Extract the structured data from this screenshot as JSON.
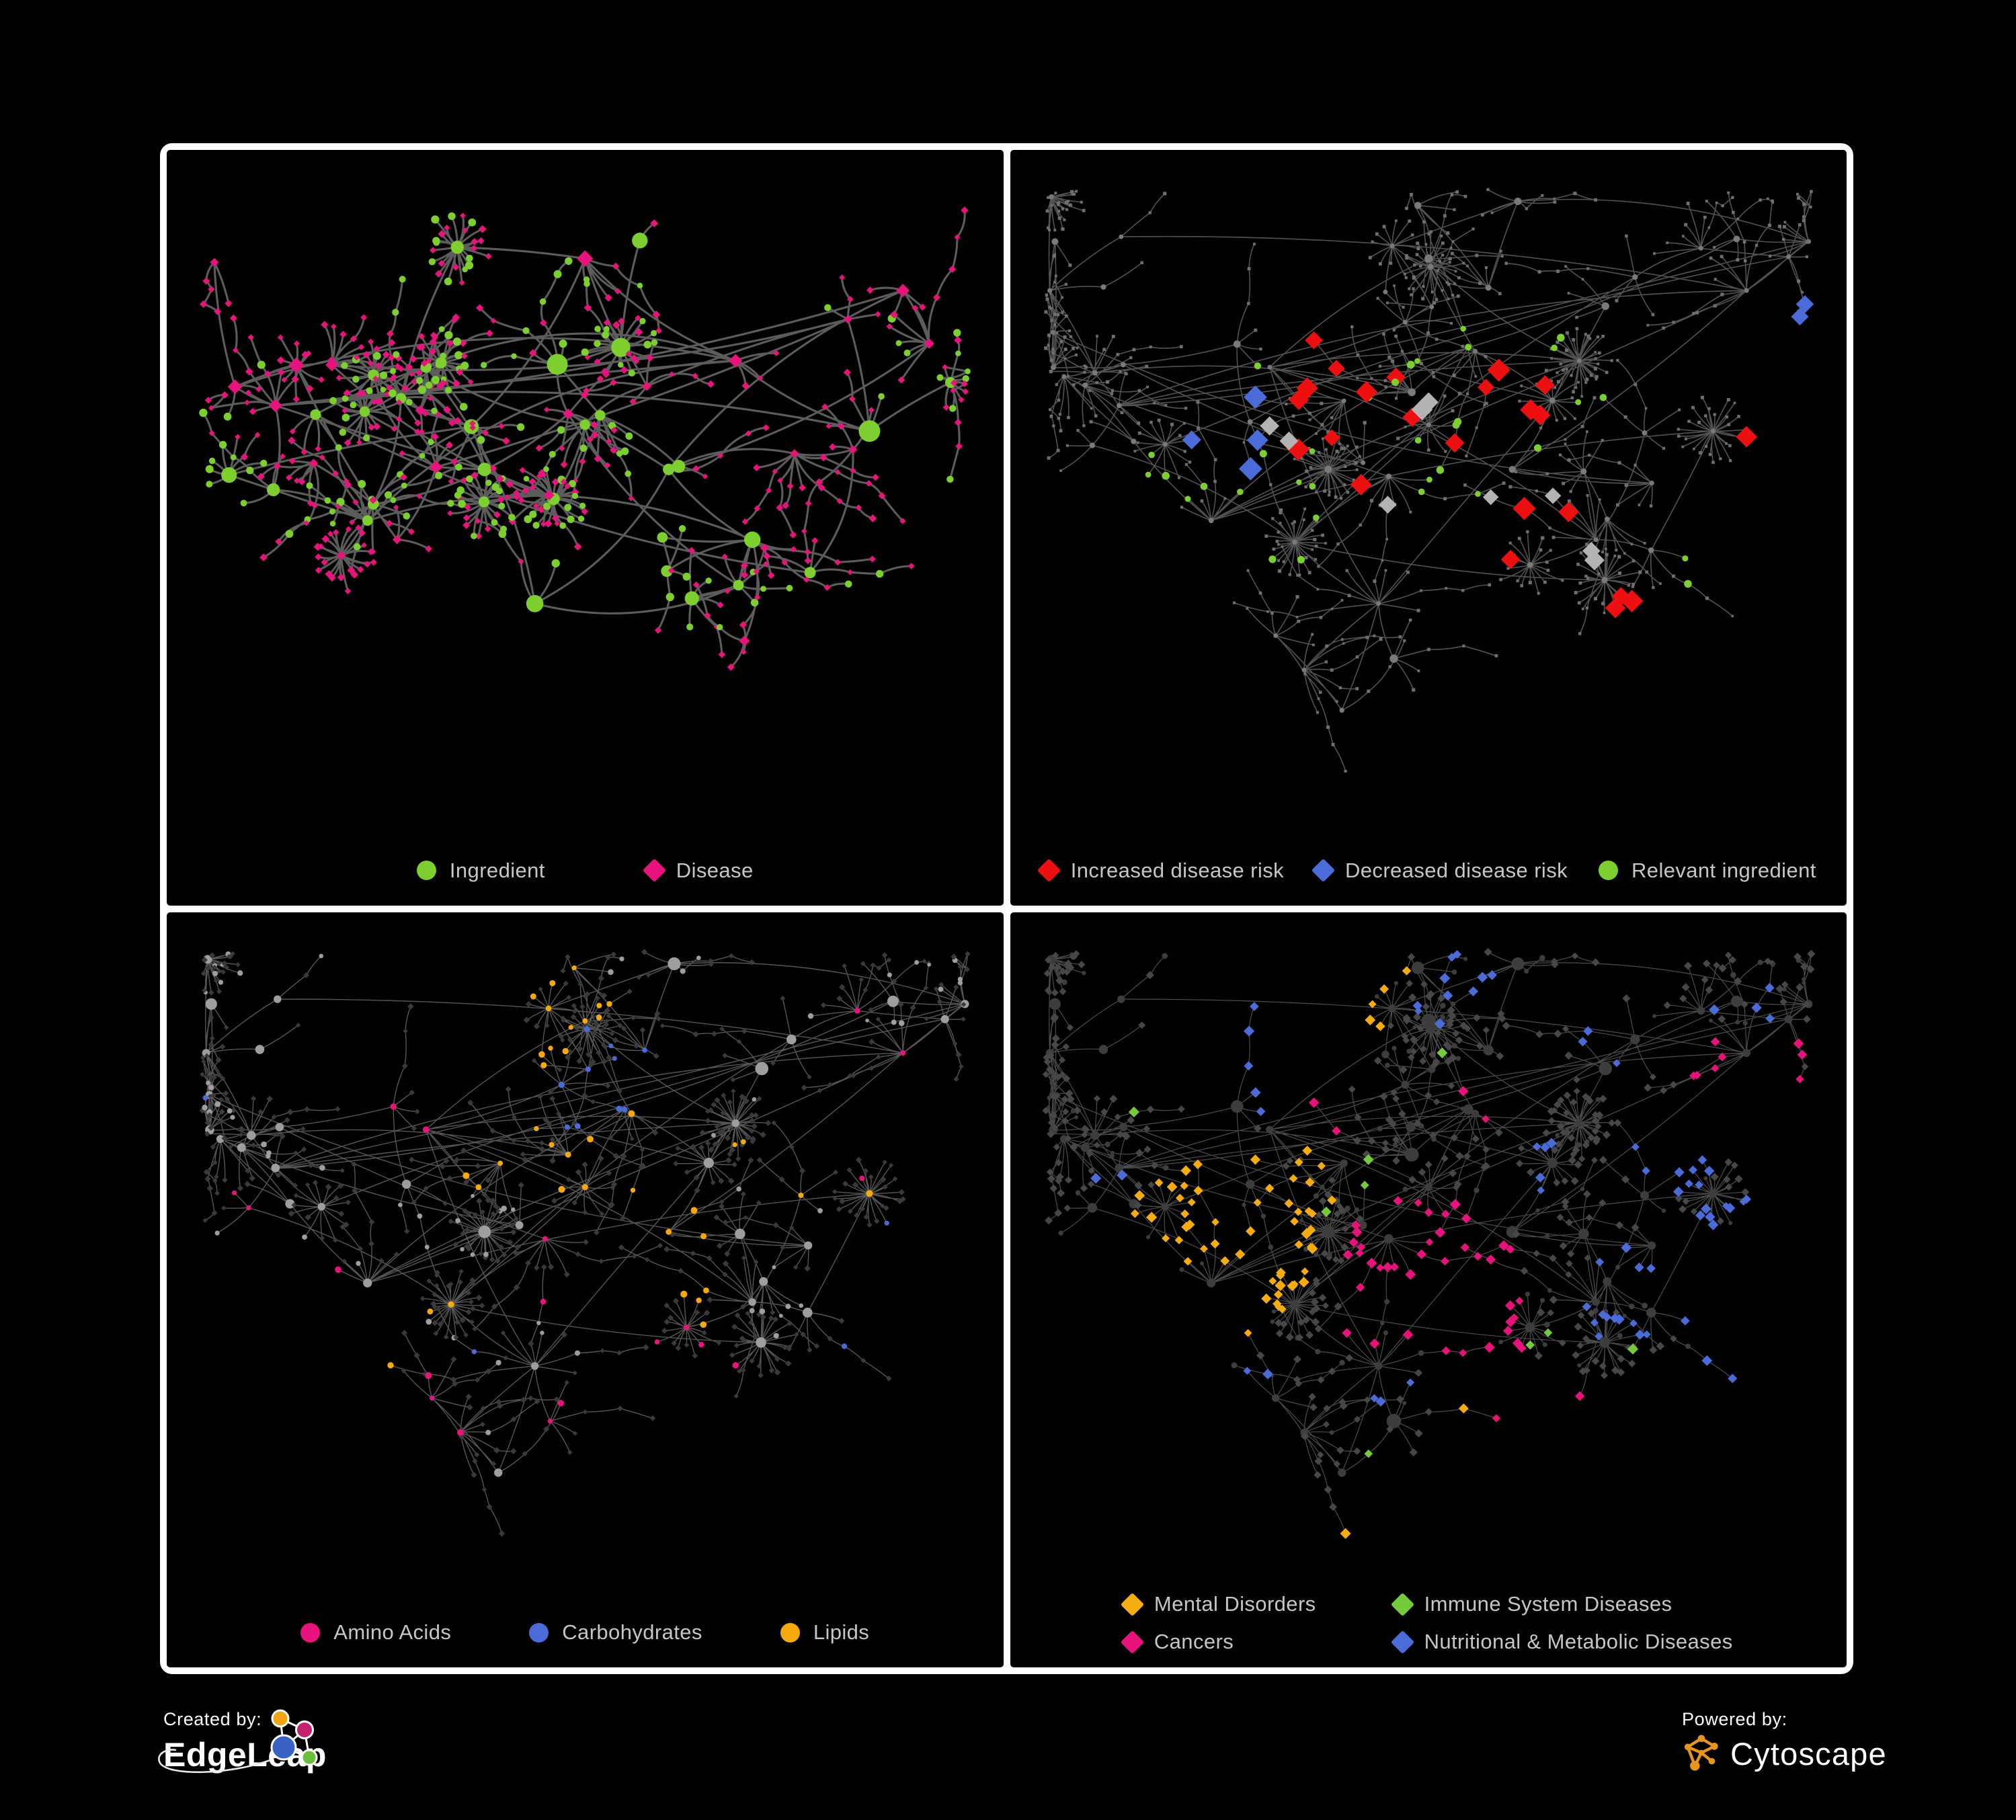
{
  "branding": {
    "created_by_label": "Created by:",
    "created_by_name": "EdgeLeap",
    "powered_by_label": "Powered by:",
    "powered_by_name": "Cytoscape",
    "edgeleap_logo_colors": {
      "orange": "#F2A413",
      "magenta": "#C4216E",
      "blue": "#3A62C4",
      "green": "#6CBE3F"
    },
    "cytoscape_logo_color": "#E8951F"
  },
  "legend_text_color": "#C6C6C6",
  "networks": {
    "bipartite": {
      "seed": 23,
      "hubs": 54,
      "hub_ing_p": 0.55,
      "leaf_ing_hub": 0.45,
      "leaf_ing_other": 0.12,
      "leaf_max": 8,
      "burst_p": 0.18,
      "burst_min": 10,
      "burst_max": 26,
      "chain_p": 0.3
    },
    "base": {
      "seed": 77,
      "hubs": 62,
      "hub_ing_p": 1.0,
      "leaf_ing_hub": 0.15,
      "leaf_ing_other": 0.15,
      "leaf_max": 9,
      "burst_p": 0.2,
      "burst_min": 12,
      "burst_max": 44,
      "chain_p": 0.34
    }
  },
  "panels": [
    {
      "name": "ingredient-disease-network",
      "network": "bipartite",
      "paint_seed": 5,
      "paint": {
        "mode": "two",
        "ing_color": "#7DCE2F",
        "dis_color": "#E8137C"
      },
      "edge": {
        "color": "#666666",
        "width": 3.1,
        "opacity": 0.9,
        "curve": 0.8
      },
      "legend": [
        {
          "label": "Ingredient",
          "color": "#7DCE2F",
          "shape": "circle"
        },
        {
          "label": "Disease",
          "color": "#E8137C",
          "shape": "diamond"
        }
      ]
    },
    {
      "name": "disease-risk-network",
      "network": "base",
      "paint_seed": 6,
      "paint": {
        "mode": "dim",
        "base_color": "#6F6F6F",
        "hub_color": "#7A7A7A"
      },
      "edge": {
        "color": "#606060",
        "width": 1.6,
        "opacity": 0.85,
        "curve": 0.45
      },
      "highlights": [
        {
          "color": "#EE1010",
          "shape": "diamond",
          "size": 15,
          "target": "dis",
          "spots": [
            [
              0.4,
              0.4,
              0.16,
              12
            ],
            [
              0.55,
              0.38,
              0.1,
              7
            ],
            [
              0.3,
              0.4,
              0.07,
              3
            ],
            [
              0.62,
              0.6,
              0.08,
              3
            ],
            [
              0.35,
              0.28,
              0.04,
              1
            ],
            [
              0.47,
              0.5,
              0.06,
              3
            ],
            [
              0.76,
              0.75,
              0.05,
              3
            ],
            [
              0.85,
              0.48,
              0.04,
              1
            ]
          ]
        },
        {
          "color": "#4B6CD8",
          "shape": "diamond",
          "size": 15,
          "target": "dis",
          "spots": [
            [
              0.26,
              0.42,
              0.07,
              5
            ],
            [
              0.9,
              0.3,
              0.04,
              2
            ]
          ]
        },
        {
          "color": "#B3B3B3",
          "shape": "diamond",
          "size": 14,
          "target": "dis",
          "spots": [
            [
              0.33,
              0.42,
              0.05,
              2
            ],
            [
              0.52,
              0.44,
              0.04,
              2
            ],
            [
              0.6,
              0.52,
              0.06,
              2
            ],
            [
              0.47,
              0.56,
              0.03,
              1
            ],
            [
              0.72,
              0.6,
              0.04,
              2
            ]
          ]
        },
        {
          "color": "#7DCE2F",
          "shape": "circle",
          "size": 8,
          "target": "any",
          "spots": [
            [
              0.42,
              0.44,
              0.13,
              10
            ],
            [
              0.25,
              0.43,
              0.1,
              6
            ],
            [
              0.55,
              0.5,
              0.09,
              5
            ],
            [
              0.15,
              0.5,
              0.04,
              2
            ],
            [
              0.68,
              0.38,
              0.05,
              2
            ],
            [
              0.85,
              0.6,
              0.04,
              2
            ],
            [
              0.3,
              0.66,
              0.05,
              2
            ],
            [
              0.5,
              0.3,
              0.05,
              3
            ],
            [
              0.62,
              0.3,
              0.04,
              2
            ]
          ]
        }
      ],
      "legend": [
        {
          "label": "Increased disease risk",
          "color": "#EE1010",
          "shape": "diamond"
        },
        {
          "label": "Decreased disease risk",
          "color": "#4B6CD8",
          "shape": "diamond"
        },
        {
          "label": "Relevant ingredient",
          "color": "#7DCE2F",
          "shape": "circle"
        }
      ]
    },
    {
      "name": "nutrient-class-network",
      "network": "base",
      "paint_seed": 7,
      "paint": {
        "mode": "classed",
        "ing_color": "#9E9E9E",
        "dis_color": "#3A3A3A",
        "dis_size": 3.6
      },
      "edge": {
        "color": "#8F8F8F",
        "width": 1.4,
        "opacity": 0.6,
        "curve": 0.4
      },
      "highlights": [
        {
          "color": "#F5A90D",
          "shape": "circle",
          "size": 7,
          "target": "ing",
          "spots": [
            [
              0.5,
              0.27,
              0.09,
              26
            ],
            [
              0.42,
              0.34,
              0.07,
              12
            ],
            [
              0.56,
              0.45,
              0.05,
              7
            ],
            [
              0.3,
              0.2,
              0.05,
              4
            ],
            [
              0.64,
              0.6,
              0.05,
              5
            ],
            [
              0.34,
              0.6,
              0.03,
              2
            ],
            [
              0.74,
              0.38,
              0.04,
              3
            ],
            [
              0.46,
              0.1,
              0.04,
              3
            ],
            [
              0.2,
              0.78,
              0.03,
              2
            ],
            [
              0.88,
              0.55,
              0.03,
              2
            ],
            [
              0.58,
              0.7,
              0.03,
              2
            ]
          ]
        },
        {
          "color": "#4B6CD8",
          "shape": "circle",
          "size": 6.5,
          "target": "ing",
          "spots": [
            [
              0.53,
              0.24,
              0.05,
              7
            ],
            [
              0.47,
              0.3,
              0.04,
              3
            ],
            [
              0.06,
              0.3,
              0.02,
              1
            ],
            [
              0.88,
              0.62,
              0.03,
              2
            ],
            [
              0.38,
              0.66,
              0.02,
              1
            ]
          ]
        },
        {
          "color": "#E8137C",
          "shape": "circle",
          "size": 7,
          "target": "ing",
          "spots": [
            [
              0.1,
              0.44,
              0.04,
              2
            ],
            [
              0.34,
              0.77,
              0.05,
              3
            ],
            [
              0.6,
              0.74,
              0.05,
              4
            ],
            [
              0.92,
              0.32,
              0.04,
              2
            ],
            [
              0.25,
              0.3,
              0.03,
              2
            ],
            [
              0.49,
              0.88,
              0.03,
              2
            ],
            [
              0.84,
              0.14,
              0.02,
              1
            ],
            [
              0.46,
              0.56,
              0.03,
              2
            ],
            [
              0.16,
              0.6,
              0.03,
              1
            ],
            [
              0.55,
              0.96,
              0.02,
              1
            ]
          ]
        }
      ],
      "legend": [
        {
          "label": "Amino Acids",
          "color": "#E8137C",
          "shape": "circle"
        },
        {
          "label": "Carbohydrates",
          "color": "#4B6CD8",
          "shape": "circle"
        },
        {
          "label": "Lipids",
          "color": "#F5A90D",
          "shape": "circle"
        }
      ]
    },
    {
      "name": "disease-class-network",
      "network": "base",
      "paint_seed": 8,
      "paint": {
        "mode": "classed",
        "ing_color": "#3D3D3D",
        "dis_color": "#474747",
        "dis_size": 5
      },
      "edge": {
        "color": "#8A8A8A",
        "width": 1.2,
        "opacity": 0.55,
        "curve": 0.4
      },
      "highlights": [
        {
          "color": "#F5AC10",
          "shape": "diamond",
          "size": 7,
          "target": "dis",
          "spots": [
            [
              0.26,
              0.52,
              0.1,
              48
            ],
            [
              0.33,
              0.44,
              0.06,
              12
            ],
            [
              0.21,
              0.61,
              0.05,
              8
            ],
            [
              0.38,
              0.1,
              0.05,
              5
            ],
            [
              0.29,
              0.08,
              0.03,
              2
            ],
            [
              0.55,
              0.78,
              0.03,
              2
            ],
            [
              0.44,
              0.94,
              0.02,
              1
            ],
            [
              0.8,
              0.42,
              0.02,
              1
            ],
            [
              0.15,
              0.45,
              0.04,
              4
            ]
          ]
        },
        {
          "color": "#E8127C",
          "shape": "diamond",
          "size": 7,
          "target": "dis",
          "spots": [
            [
              0.5,
              0.56,
              0.08,
              30
            ],
            [
              0.57,
              0.62,
              0.05,
              10
            ],
            [
              0.45,
              0.63,
              0.04,
              6
            ],
            [
              0.88,
              0.28,
              0.05,
              6
            ],
            [
              0.35,
              0.3,
              0.04,
              3
            ],
            [
              0.55,
              0.3,
              0.03,
              2
            ],
            [
              0.67,
              0.87,
              0.03,
              2
            ],
            [
              0.6,
              0.96,
              0.02,
              1
            ],
            [
              0.93,
              0.22,
              0.03,
              2
            ]
          ]
        },
        {
          "color": "#4B6CD8",
          "shape": "diamond",
          "size": 7,
          "target": "dis",
          "spots": [
            [
              0.73,
              0.6,
              0.06,
              14
            ],
            [
              0.8,
              0.37,
              0.05,
              9
            ],
            [
              0.85,
              0.49,
              0.04,
              6
            ],
            [
              0.55,
              0.08,
              0.05,
              7
            ],
            [
              0.3,
              0.15,
              0.05,
              5
            ],
            [
              0.88,
              0.14,
              0.04,
              4
            ],
            [
              0.95,
              0.55,
              0.03,
              2
            ],
            [
              0.65,
              0.34,
              0.03,
              3
            ],
            [
              0.45,
              0.74,
              0.03,
              3
            ],
            [
              0.25,
              0.74,
              0.02,
              2
            ],
            [
              0.92,
              0.74,
              0.03,
              3
            ],
            [
              0.12,
              0.4,
              0.02,
              2
            ],
            [
              0.7,
              0.2,
              0.03,
              3
            ],
            [
              0.5,
              0.18,
              0.03,
              3
            ],
            [
              0.62,
              0.45,
              0.03,
              2
            ]
          ]
        },
        {
          "color": "#76C83C",
          "shape": "diamond",
          "size": 7,
          "target": "dis",
          "spots": [
            [
              0.44,
              0.42,
              0.03,
              2
            ],
            [
              0.37,
              0.47,
              0.02,
              1
            ],
            [
              0.63,
              0.66,
              0.02,
              2
            ],
            [
              0.52,
              0.2,
              0.02,
              1
            ],
            [
              0.15,
              0.3,
              0.02,
              1
            ],
            [
              0.75,
              0.7,
              0.02,
              1
            ],
            [
              0.42,
              0.88,
              0.02,
              1
            ]
          ]
        }
      ],
      "legend": [
        {
          "label": "Mental Disorders",
          "color": "#F5AC10",
          "shape": "diamond"
        },
        {
          "label": "Immune System Diseases",
          "color": "#76C83C",
          "shape": "diamond"
        },
        {
          "label": "Cancers",
          "color": "#E8127C",
          "shape": "diamond"
        },
        {
          "label": "Nutritional & Metabolic Diseases",
          "color": "#4B6CD8",
          "shape": "diamond"
        }
      ]
    }
  ]
}
